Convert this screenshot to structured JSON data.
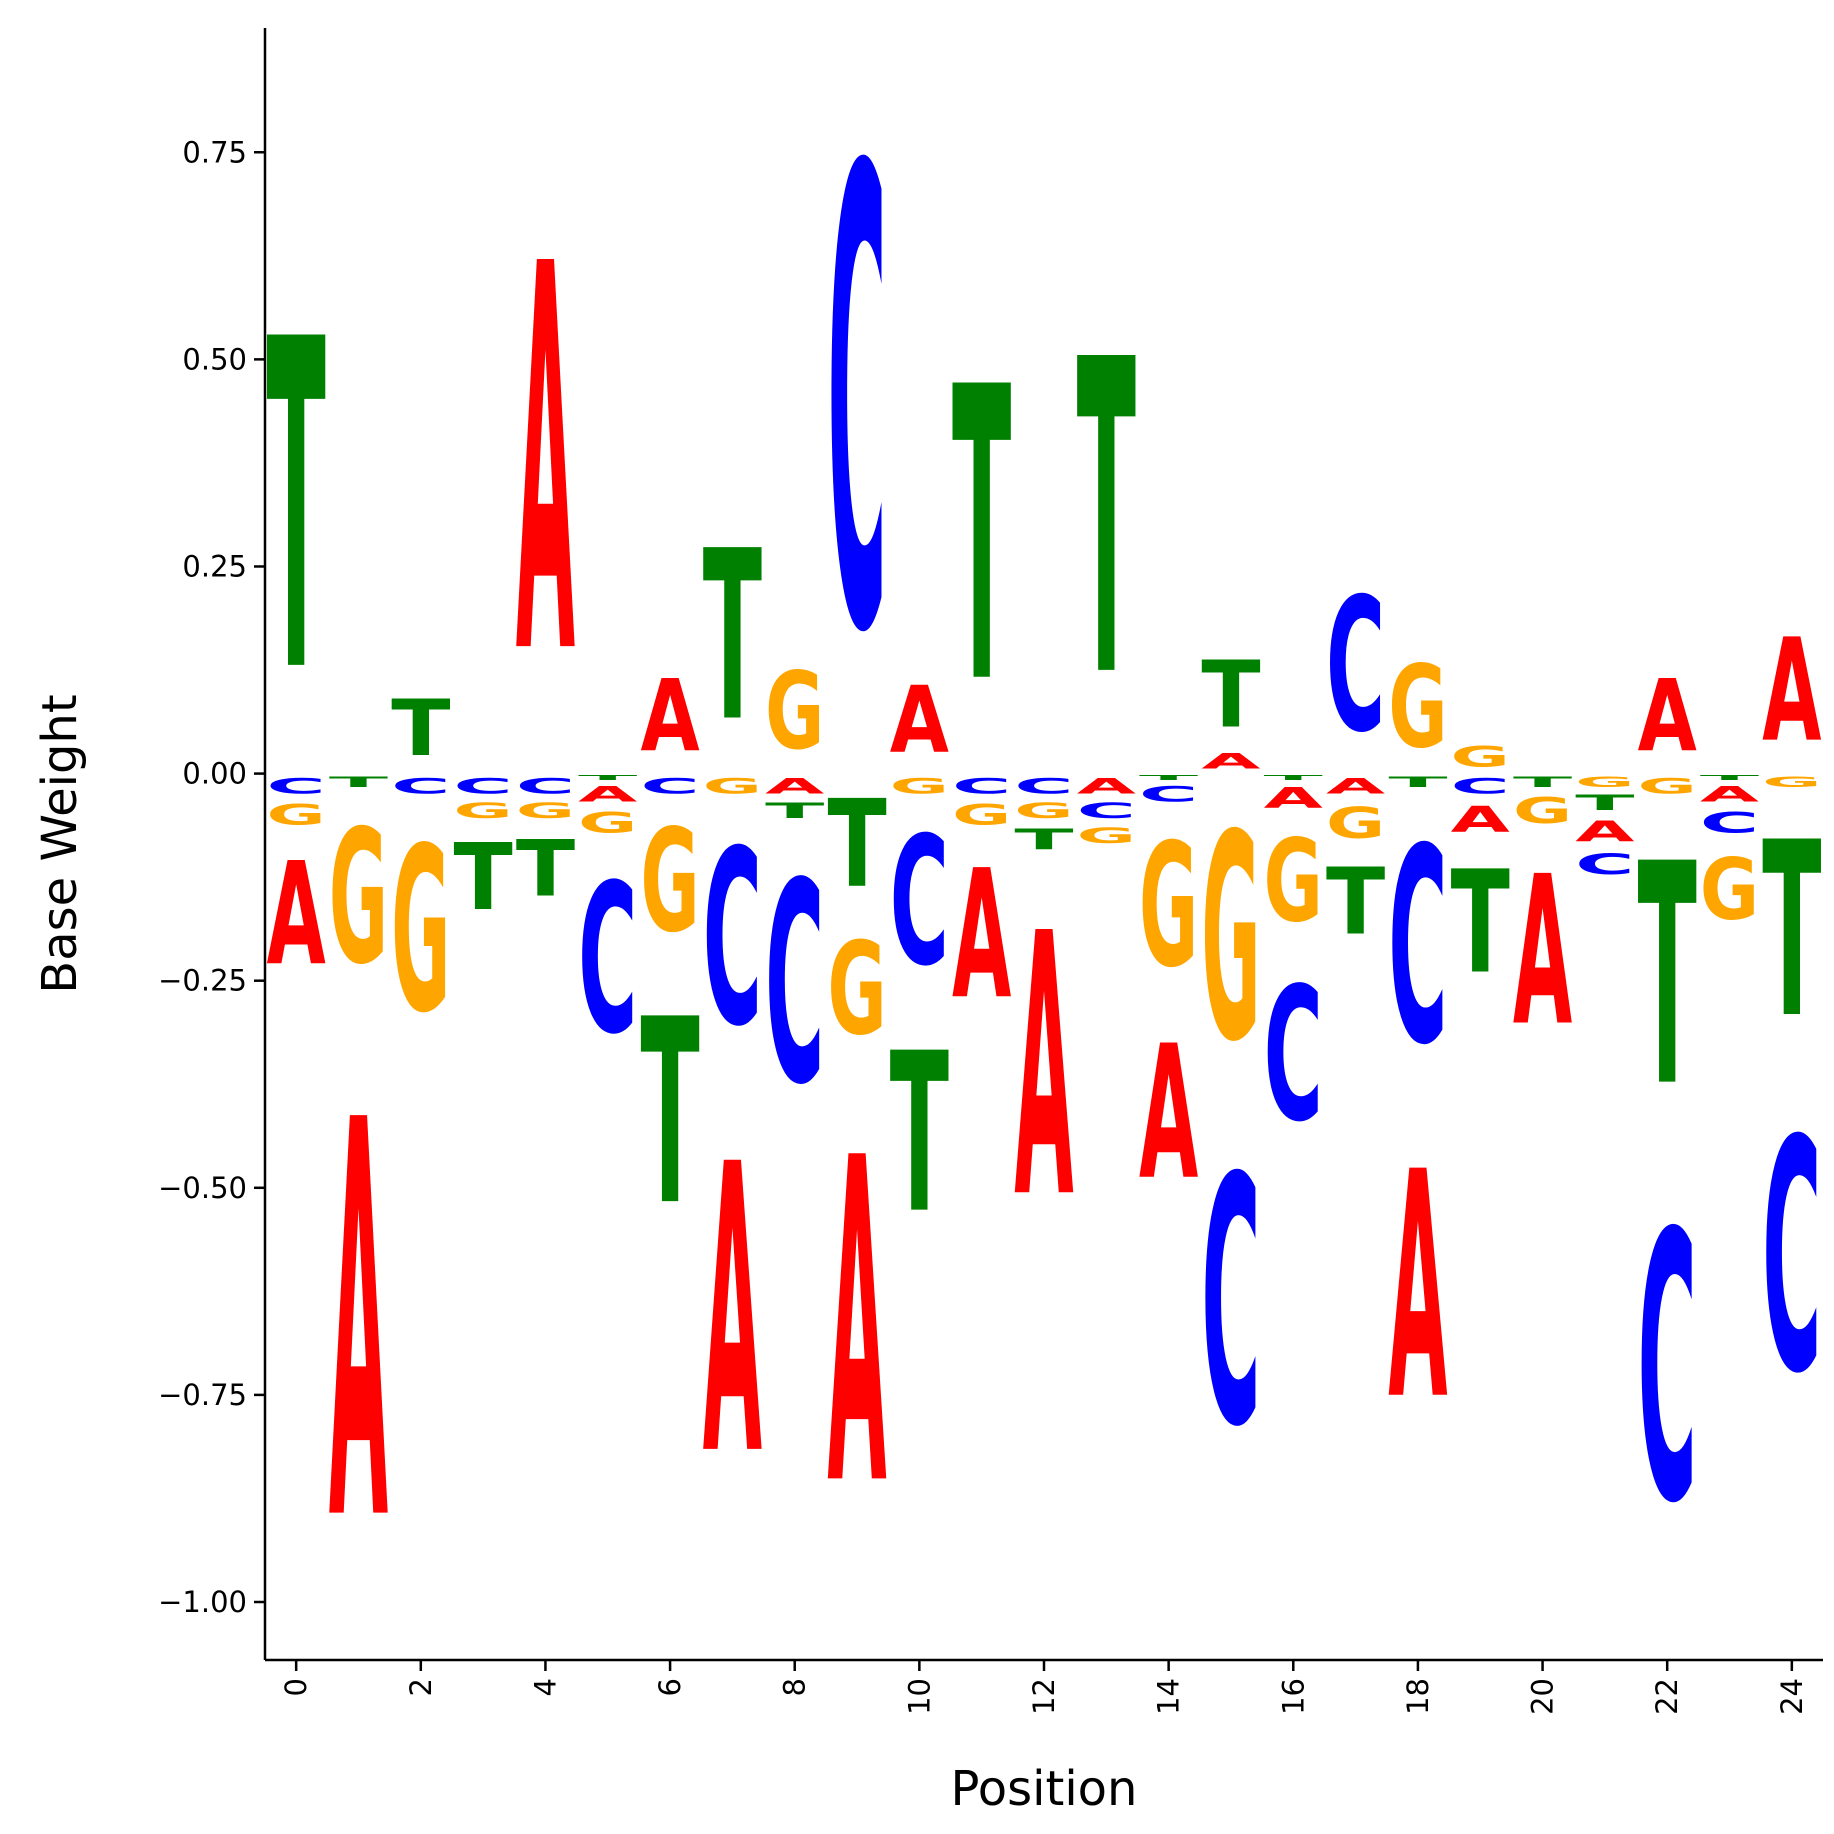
{
  "chart_data": {
    "type": "sequence-logo",
    "xlabel": "Position",
    "ylabel": "Base Weight",
    "xlim": [
      -0.5,
      24.5
    ],
    "ylim": [
      -1.07,
      0.9
    ],
    "yticks": [
      -1.0,
      -0.75,
      -0.5,
      -0.25,
      0.0,
      0.25,
      0.5,
      0.75
    ],
    "ytick_labels": [
      "−1.00",
      "−0.75",
      "−0.50",
      "−0.25",
      "0.00",
      "0.25",
      "0.50",
      "0.75"
    ],
    "xticks": [
      0,
      2,
      4,
      6,
      8,
      10,
      12,
      14,
      16,
      18,
      20,
      22,
      24
    ],
    "xtick_labels": [
      "0",
      "2",
      "4",
      "6",
      "8",
      "10",
      "12",
      "14",
      "16",
      "18",
      "20",
      "22",
      "24"
    ],
    "colors": {
      "A": "#ff0000",
      "C": "#0000ff",
      "G": "#ffa500",
      "T": "#008000"
    },
    "positions": [
      {
        "pos": 0,
        "A": -0.2,
        "C": -0.03,
        "G": -0.04,
        "T": 0.64
      },
      {
        "pos": 1,
        "A": -0.77,
        "C": 0.0,
        "G": -0.26,
        "T": -0.02
      },
      {
        "pos": 2,
        "A": 0.0,
        "C": -0.03,
        "G": -0.32,
        "T": 0.11
      },
      {
        "pos": 3,
        "A": 0.0,
        "C": -0.03,
        "G": -0.03,
        "T": -0.13
      },
      {
        "pos": 4,
        "A": 0.75,
        "C": -0.03,
        "G": -0.03,
        "T": -0.11
      },
      {
        "pos": 5,
        "A": -0.03,
        "C": -0.29,
        "G": -0.04,
        "T": -0.01
      },
      {
        "pos": 6,
        "A": 0.14,
        "C": -0.03,
        "G": -0.2,
        "T": -0.36
      },
      {
        "pos": 7,
        "A": -0.56,
        "C": -0.34,
        "G": -0.03,
        "T": 0.33
      },
      {
        "pos": 8,
        "A": -0.03,
        "C": -0.39,
        "G": 0.15,
        "T": -0.03
      },
      {
        "pos": 9,
        "A": -0.63,
        "C": 0.89,
        "G": -0.18,
        "T": -0.17
      },
      {
        "pos": 10,
        "A": 0.13,
        "C": -0.25,
        "G": -0.03,
        "T": -0.31
      },
      {
        "pos": 11,
        "A": -0.25,
        "C": -0.03,
        "G": -0.04,
        "T": 0.57
      },
      {
        "pos": 12,
        "A": -0.51,
        "C": -0.03,
        "G": -0.03,
        "T": -0.04
      },
      {
        "pos": 13,
        "A": -0.03,
        "C": -0.03,
        "G": -0.03,
        "T": 0.61
      },
      {
        "pos": 14,
        "A": -0.26,
        "C": -0.03,
        "G": -0.24,
        "T": -0.01
      },
      {
        "pos": 15,
        "A": 0.03,
        "C": -0.48,
        "G": -0.4,
        "T": 0.13
      },
      {
        "pos": 16,
        "A": -0.04,
        "C": -0.26,
        "G": -0.16,
        "T": -0.01
      },
      {
        "pos": 17,
        "A": -0.03,
        "C": 0.26,
        "G": -0.06,
        "T": -0.13
      },
      {
        "pos": 18,
        "A": -0.44,
        "C": -0.38,
        "G": 0.16,
        "T": -0.02
      },
      {
        "pos": 19,
        "A": -0.05,
        "C": -0.03,
        "G": 0.04,
        "T": -0.2
      },
      {
        "pos": 20,
        "A": -0.29,
        "C": 0.0,
        "G": -0.05,
        "T": -0.02
      },
      {
        "pos": 21,
        "A": -0.04,
        "C": -0.04,
        "G": -0.02,
        "T": -0.03
      },
      {
        "pos": 22,
        "A": 0.14,
        "C": -0.52,
        "G": -0.03,
        "T": -0.43
      },
      {
        "pos": 23,
        "A": -0.03,
        "C": -0.04,
        "G": -0.12,
        "T": -0.01
      },
      {
        "pos": 24,
        "A": 0.2,
        "C": -0.45,
        "G": -0.02,
        "T": -0.34
      }
    ]
  }
}
